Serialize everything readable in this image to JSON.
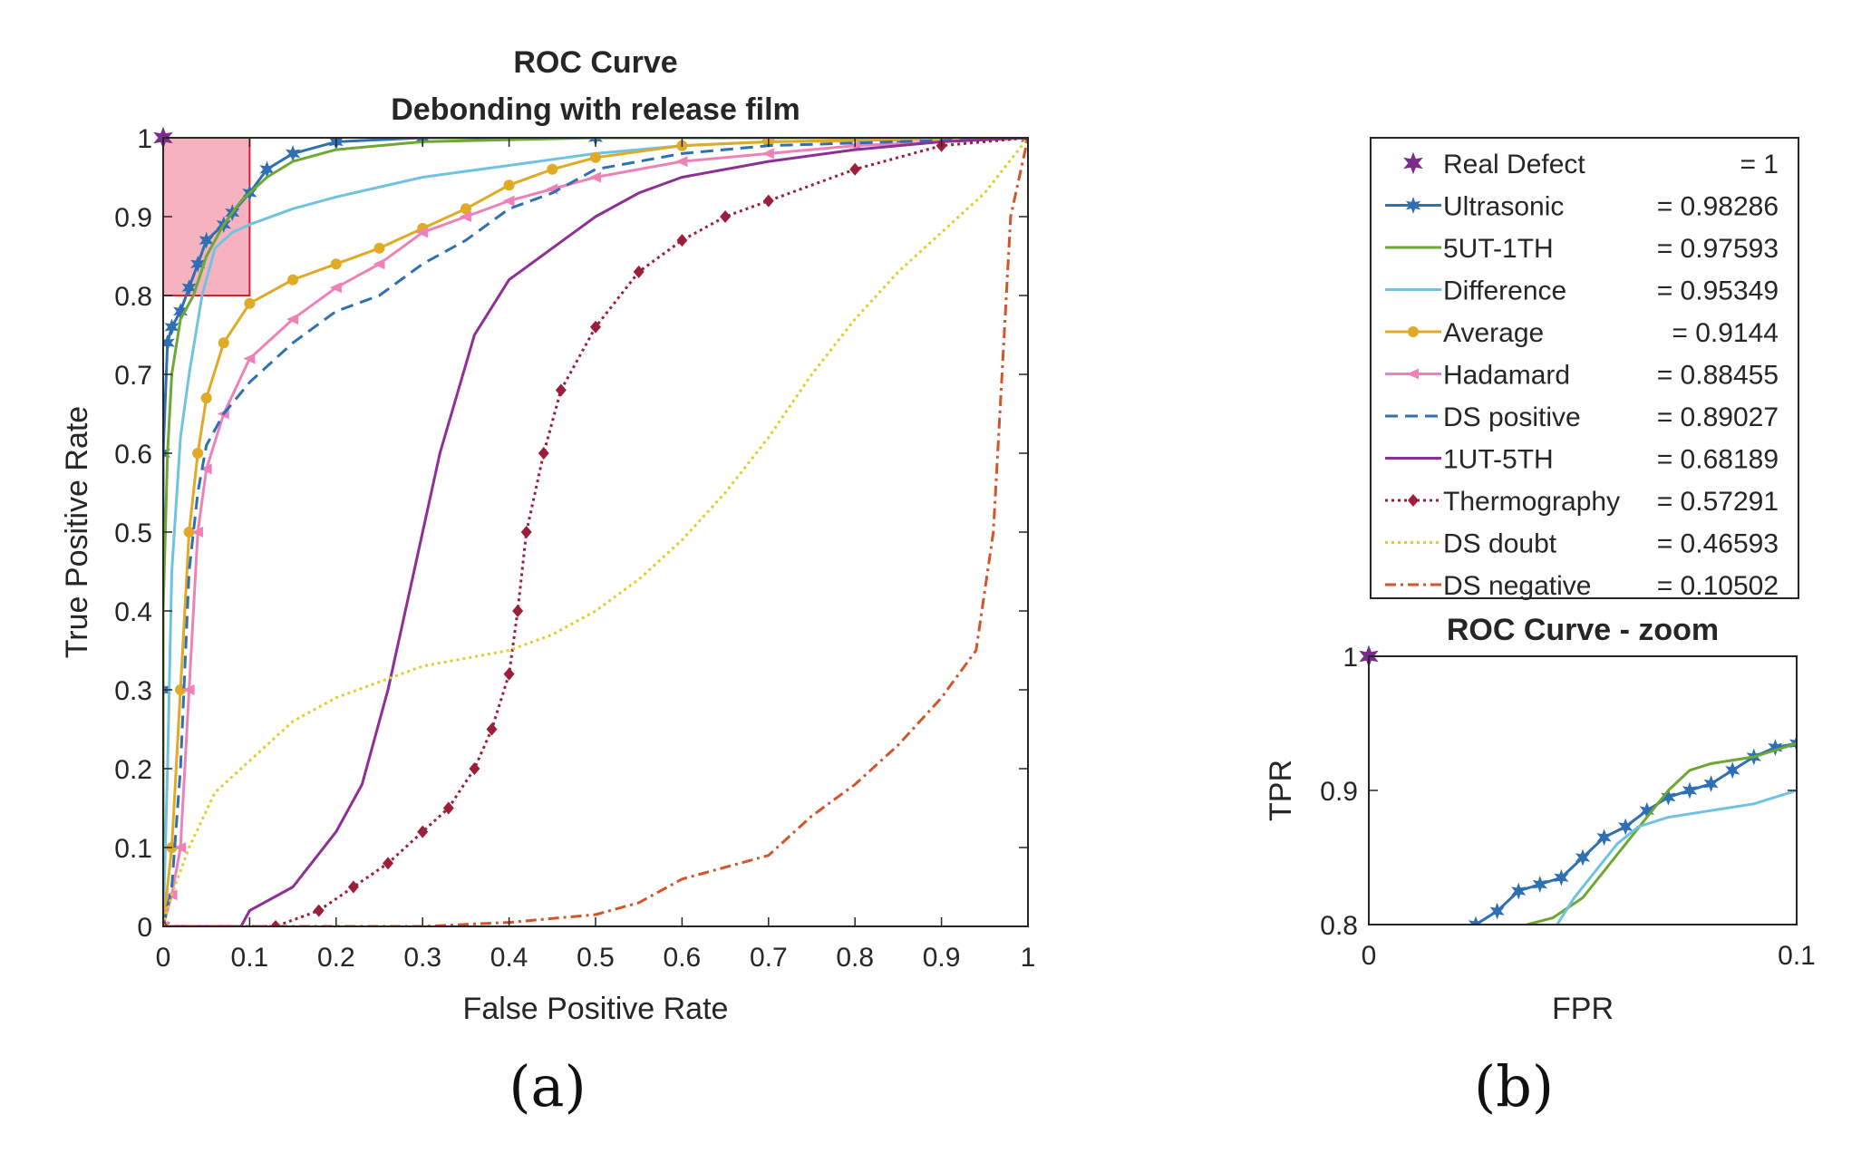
{
  "chart_data": [
    {
      "panel": "(a)",
      "type": "line",
      "title": "ROC Curve",
      "subtitle": "Debonding with release film",
      "xlabel": "False Positive Rate",
      "ylabel": "True Positive Rate",
      "xlim": [
        0,
        1
      ],
      "ylim": [
        0,
        1
      ],
      "xticks": [
        "0",
        "0.1",
        "0.2",
        "0.3",
        "0.4",
        "0.5",
        "0.6",
        "0.7",
        "0.8",
        "0.9",
        "1"
      ],
      "yticks": [
        "0",
        "0.1",
        "0.2",
        "0.3",
        "0.4",
        "0.5",
        "0.6",
        "0.7",
        "0.8",
        "0.9",
        "1"
      ],
      "grid": false,
      "zoom_region": {
        "x": [
          0,
          0.1
        ],
        "y": [
          0.8,
          1.0
        ],
        "color": "#f4a6b4"
      },
      "series": [
        {
          "name": "Real Defect",
          "value": "= 1",
          "color": "#7b2d8e",
          "style": "marker",
          "marker": "star",
          "points": [
            [
              0,
              1
            ]
          ]
        },
        {
          "name": "Ultrasonic",
          "value": "= 0.98286",
          "color": "#2f6fb3",
          "style": "solid",
          "marker": "star",
          "points": [
            [
              0,
              0
            ],
            [
              0,
              0.3
            ],
            [
              0,
              0.6
            ],
            [
              0.005,
              0.74
            ],
            [
              0.01,
              0.76
            ],
            [
              0.02,
              0.78
            ],
            [
              0.03,
              0.81
            ],
            [
              0.04,
              0.84
            ],
            [
              0.05,
              0.87
            ],
            [
              0.07,
              0.89
            ],
            [
              0.08,
              0.905
            ],
            [
              0.1,
              0.93
            ],
            [
              0.12,
              0.96
            ],
            [
              0.15,
              0.98
            ],
            [
              0.2,
              0.995
            ],
            [
              0.3,
              1
            ],
            [
              0.5,
              1
            ],
            [
              0.7,
              1
            ],
            [
              0.85,
              1
            ],
            [
              1,
              1
            ]
          ]
        },
        {
          "name": "5UT-1TH",
          "value": "= 0.97593",
          "color": "#6ea832",
          "style": "solid",
          "marker": "none",
          "points": [
            [
              0,
              0
            ],
            [
              0,
              0.4
            ],
            [
              0.005,
              0.6
            ],
            [
              0.01,
              0.7
            ],
            [
              0.02,
              0.77
            ],
            [
              0.035,
              0.8
            ],
            [
              0.05,
              0.85
            ],
            [
              0.07,
              0.89
            ],
            [
              0.09,
              0.92
            ],
            [
              0.12,
              0.95
            ],
            [
              0.15,
              0.97
            ],
            [
              0.2,
              0.985
            ],
            [
              0.3,
              0.995
            ],
            [
              0.5,
              1
            ],
            [
              1,
              1
            ]
          ]
        },
        {
          "name": "Difference",
          "value": "= 0.95349",
          "color": "#6fc3e0",
          "style": "solid",
          "marker": "none",
          "points": [
            [
              0,
              0
            ],
            [
              0.005,
              0.2
            ],
            [
              0.01,
              0.45
            ],
            [
              0.02,
              0.62
            ],
            [
              0.03,
              0.7
            ],
            [
              0.045,
              0.8
            ],
            [
              0.06,
              0.86
            ],
            [
              0.08,
              0.88
            ],
            [
              0.1,
              0.89
            ],
            [
              0.15,
              0.91
            ],
            [
              0.2,
              0.925
            ],
            [
              0.3,
              0.95
            ],
            [
              0.4,
              0.965
            ],
            [
              0.5,
              0.98
            ],
            [
              0.6,
              0.99
            ],
            [
              0.7,
              0.995
            ],
            [
              1,
              1
            ]
          ]
        },
        {
          "name": "Average",
          "value": "= 0.9144",
          "color": "#e0aa24",
          "style": "solid",
          "marker": "dot",
          "points": [
            [
              0,
              0
            ],
            [
              0.01,
              0.1
            ],
            [
              0.02,
              0.3
            ],
            [
              0.03,
              0.5
            ],
            [
              0.04,
              0.6
            ],
            [
              0.05,
              0.67
            ],
            [
              0.07,
              0.74
            ],
            [
              0.1,
              0.79
            ],
            [
              0.15,
              0.82
            ],
            [
              0.2,
              0.84
            ],
            [
              0.25,
              0.86
            ],
            [
              0.3,
              0.885
            ],
            [
              0.35,
              0.91
            ],
            [
              0.4,
              0.94
            ],
            [
              0.45,
              0.96
            ],
            [
              0.5,
              0.975
            ],
            [
              0.6,
              0.99
            ],
            [
              0.7,
              0.995
            ],
            [
              1,
              1
            ]
          ]
        },
        {
          "name": "Hadamard",
          "value": "= 0.88455",
          "color": "#ee82b8",
          "style": "solid",
          "marker": "triangle",
          "points": [
            [
              0,
              0
            ],
            [
              0.01,
              0.04
            ],
            [
              0.02,
              0.1
            ],
            [
              0.03,
              0.3
            ],
            [
              0.04,
              0.5
            ],
            [
              0.05,
              0.58
            ],
            [
              0.07,
              0.65
            ],
            [
              0.1,
              0.72
            ],
            [
              0.15,
              0.77
            ],
            [
              0.2,
              0.81
            ],
            [
              0.25,
              0.84
            ],
            [
              0.3,
              0.88
            ],
            [
              0.35,
              0.9
            ],
            [
              0.4,
              0.92
            ],
            [
              0.45,
              0.935
            ],
            [
              0.5,
              0.95
            ],
            [
              0.6,
              0.97
            ],
            [
              0.7,
              0.98
            ],
            [
              0.8,
              0.99
            ],
            [
              1,
              1
            ]
          ]
        },
        {
          "name": "DS positive",
          "value": "= 0.89027",
          "color": "#2f6fb3",
          "style": "dashed",
          "marker": "none",
          "points": [
            [
              0,
              0
            ],
            [
              0.01,
              0.05
            ],
            [
              0.02,
              0.2
            ],
            [
              0.03,
              0.45
            ],
            [
              0.04,
              0.55
            ],
            [
              0.05,
              0.61
            ],
            [
              0.07,
              0.65
            ],
            [
              0.1,
              0.69
            ],
            [
              0.15,
              0.74
            ],
            [
              0.2,
              0.78
            ],
            [
              0.25,
              0.8
            ],
            [
              0.3,
              0.84
            ],
            [
              0.35,
              0.87
            ],
            [
              0.4,
              0.91
            ],
            [
              0.45,
              0.93
            ],
            [
              0.5,
              0.96
            ],
            [
              0.6,
              0.98
            ],
            [
              0.7,
              0.99
            ],
            [
              1,
              1
            ]
          ]
        },
        {
          "name": "1UT-5TH",
          "value": "= 0.68189",
          "color": "#8e2f95",
          "style": "solid",
          "marker": "none",
          "points": [
            [
              0,
              0
            ],
            [
              0.09,
              0
            ],
            [
              0.1,
              0.02
            ],
            [
              0.15,
              0.05
            ],
            [
              0.2,
              0.12
            ],
            [
              0.23,
              0.18
            ],
            [
              0.26,
              0.3
            ],
            [
              0.29,
              0.45
            ],
            [
              0.32,
              0.6
            ],
            [
              0.36,
              0.75
            ],
            [
              0.4,
              0.82
            ],
            [
              0.45,
              0.86
            ],
            [
              0.5,
              0.9
            ],
            [
              0.55,
              0.93
            ],
            [
              0.6,
              0.95
            ],
            [
              0.7,
              0.97
            ],
            [
              0.8,
              0.985
            ],
            [
              0.9,
              0.995
            ],
            [
              1,
              1
            ]
          ]
        },
        {
          "name": "Thermography",
          "value": "= 0.57291",
          "color": "#9b1f3b",
          "style": "dotted",
          "marker": "diamond",
          "points": [
            [
              0,
              0
            ],
            [
              0.13,
              0
            ],
            [
              0.18,
              0.02
            ],
            [
              0.22,
              0.05
            ],
            [
              0.26,
              0.08
            ],
            [
              0.3,
              0.12
            ],
            [
              0.33,
              0.15
            ],
            [
              0.36,
              0.2
            ],
            [
              0.38,
              0.25
            ],
            [
              0.4,
              0.32
            ],
            [
              0.41,
              0.4
            ],
            [
              0.42,
              0.5
            ],
            [
              0.44,
              0.6
            ],
            [
              0.46,
              0.68
            ],
            [
              0.5,
              0.76
            ],
            [
              0.55,
              0.83
            ],
            [
              0.6,
              0.87
            ],
            [
              0.65,
              0.9
            ],
            [
              0.7,
              0.92
            ],
            [
              0.8,
              0.96
            ],
            [
              0.9,
              0.99
            ],
            [
              1,
              1
            ]
          ]
        },
        {
          "name": "DS doubt",
          "value": "= 0.46593",
          "color": "#e2cc30",
          "style": "dotted",
          "marker": "none",
          "points": [
            [
              0,
              0
            ],
            [
              0.01,
              0.04
            ],
            [
              0.03,
              0.1
            ],
            [
              0.06,
              0.17
            ],
            [
              0.1,
              0.21
            ],
            [
              0.15,
              0.26
            ],
            [
              0.2,
              0.29
            ],
            [
              0.25,
              0.31
            ],
            [
              0.3,
              0.33
            ],
            [
              0.35,
              0.34
            ],
            [
              0.4,
              0.35
            ],
            [
              0.45,
              0.37
            ],
            [
              0.5,
              0.4
            ],
            [
              0.55,
              0.44
            ],
            [
              0.6,
              0.49
            ],
            [
              0.65,
              0.55
            ],
            [
              0.7,
              0.62
            ],
            [
              0.75,
              0.7
            ],
            [
              0.8,
              0.77
            ],
            [
              0.85,
              0.83
            ],
            [
              0.9,
              0.88
            ],
            [
              0.95,
              0.93
            ],
            [
              1,
              1
            ]
          ]
        },
        {
          "name": "DS negative",
          "value": "= 0.10502",
          "color": "#d2552c",
          "style": "dashdot",
          "marker": "none",
          "points": [
            [
              0,
              0
            ],
            [
              0.2,
              0
            ],
            [
              0.3,
              0
            ],
            [
              0.4,
              0.005
            ],
            [
              0.45,
              0.01
            ],
            [
              0.5,
              0.015
            ],
            [
              0.55,
              0.03
            ],
            [
              0.6,
              0.06
            ],
            [
              0.7,
              0.09
            ],
            [
              0.75,
              0.14
            ],
            [
              0.8,
              0.18
            ],
            [
              0.85,
              0.23
            ],
            [
              0.9,
              0.29
            ],
            [
              0.94,
              0.35
            ],
            [
              0.96,
              0.5
            ],
            [
              0.97,
              0.7
            ],
            [
              0.98,
              0.9
            ],
            [
              1,
              1
            ]
          ]
        }
      ]
    },
    {
      "panel": "(b)",
      "type": "line",
      "title": "ROC Curve - zoom",
      "xlabel": "FPR",
      "ylabel": "TPR",
      "xlim": [
        0,
        0.1
      ],
      "ylim": [
        0.8,
        1.0
      ],
      "xticks": [
        "0",
        "0.1"
      ],
      "yticks": [
        "0.8",
        "0.9",
        "1"
      ],
      "grid": false,
      "series": [
        {
          "name": "Real Defect",
          "color": "#7b2d8e",
          "style": "marker",
          "marker": "star",
          "points": [
            [
              0,
              1
            ]
          ]
        },
        {
          "name": "Ultrasonic",
          "color": "#2f6fb3",
          "style": "solid",
          "marker": "star",
          "points": [
            [
              0.025,
              0.8
            ],
            [
              0.03,
              0.81
            ],
            [
              0.035,
              0.825
            ],
            [
              0.04,
              0.83
            ],
            [
              0.045,
              0.835
            ],
            [
              0.05,
              0.85
            ],
            [
              0.055,
              0.865
            ],
            [
              0.06,
              0.873
            ],
            [
              0.065,
              0.885
            ],
            [
              0.07,
              0.895
            ],
            [
              0.075,
              0.9
            ],
            [
              0.08,
              0.905
            ],
            [
              0.085,
              0.915
            ],
            [
              0.09,
              0.925
            ],
            [
              0.095,
              0.932
            ],
            [
              0.1,
              0.935
            ]
          ]
        },
        {
          "name": "5UT-1TH",
          "color": "#6ea832",
          "style": "solid",
          "marker": "none",
          "points": [
            [
              0.037,
              0.8
            ],
            [
              0.043,
              0.805
            ],
            [
              0.05,
              0.82
            ],
            [
              0.055,
              0.84
            ],
            [
              0.06,
              0.86
            ],
            [
              0.065,
              0.88
            ],
            [
              0.07,
              0.9
            ],
            [
              0.075,
              0.915
            ],
            [
              0.08,
              0.92
            ],
            [
              0.09,
              0.925
            ],
            [
              0.1,
              0.935
            ]
          ]
        },
        {
          "name": "Difference",
          "color": "#6fc3e0",
          "style": "solid",
          "marker": "none",
          "points": [
            [
              0.044,
              0.8
            ],
            [
              0.048,
              0.82
            ],
            [
              0.053,
              0.84
            ],
            [
              0.058,
              0.86
            ],
            [
              0.063,
              0.873
            ],
            [
              0.07,
              0.88
            ],
            [
              0.08,
              0.885
            ],
            [
              0.09,
              0.89
            ],
            [
              0.1,
              0.9
            ]
          ]
        }
      ]
    }
  ],
  "panel_labels": {
    "a": "(a)",
    "b": "(b)"
  }
}
